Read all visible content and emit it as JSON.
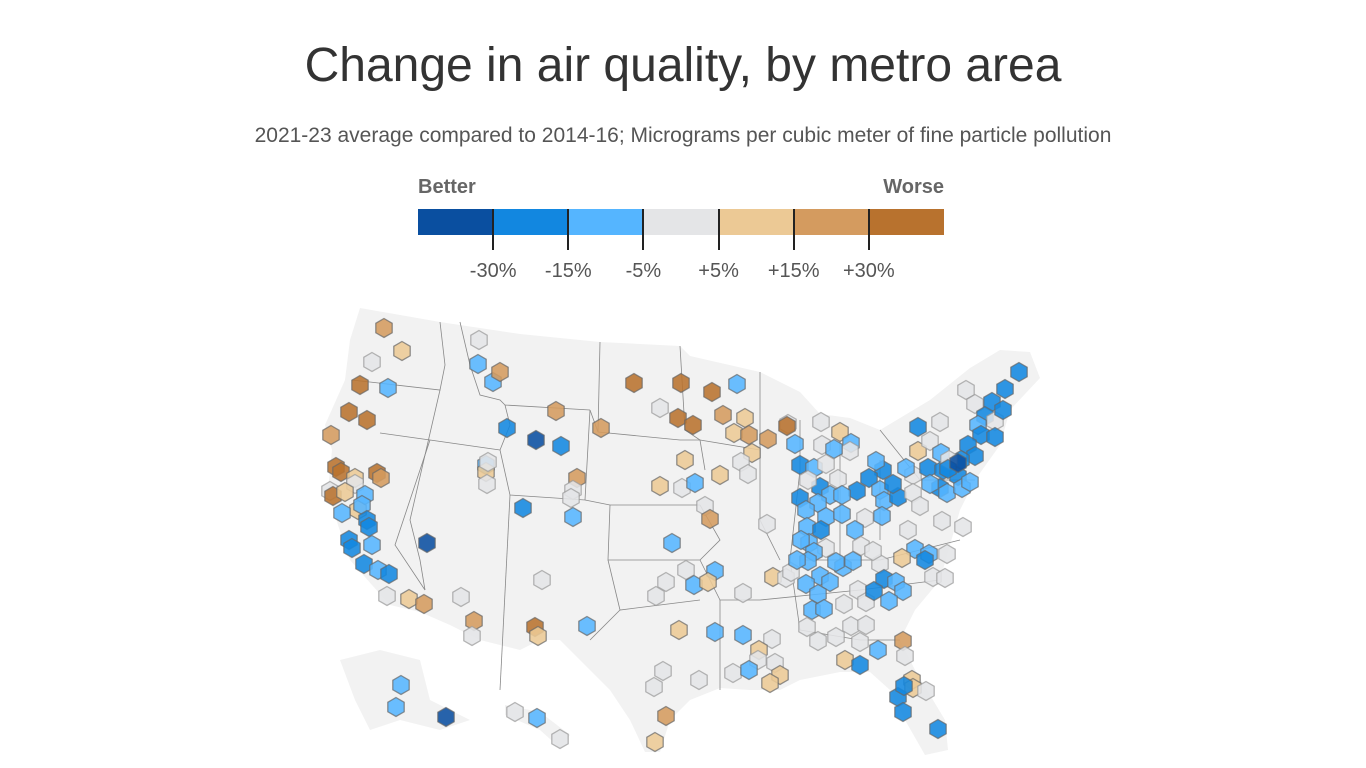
{
  "title": "Change in air quality, by metro area",
  "subtitle": "2021-23 average compared to 2014-16; Micrograms per cubic meter of fine particle pollution",
  "legend": {
    "better_label": "Better",
    "worse_label": "Worse",
    "colors": [
      "#0a4fa0",
      "#1287e0",
      "#55b5ff",
      "#e4e5e7",
      "#ecc995",
      "#d49b5f",
      "#b8722e"
    ],
    "ticks": [
      "-30%",
      "-15%",
      "-5%",
      "+5%",
      "+15%",
      "+30%"
    ]
  },
  "map": {
    "land_color": "#f2f2f2",
    "border_color": "#888888",
    "metro_bins": [
      5,
      4,
      3,
      6,
      2,
      6,
      6,
      5,
      6,
      6,
      4,
      6,
      5,
      3,
      6,
      3,
      4,
      4,
      2,
      2,
      2,
      1,
      1,
      2,
      1,
      1,
      1,
      2,
      1,
      3,
      4,
      5,
      0,
      3,
      5,
      3,
      3,
      2,
      2,
      5,
      1,
      0,
      1,
      2,
      4,
      3,
      3,
      5,
      5,
      5,
      3,
      3,
      2,
      1,
      3,
      6,
      4,
      2,
      6,
      6,
      6,
      2,
      3,
      6,
      6,
      5,
      4,
      4,
      5,
      5,
      4,
      3,
      3,
      4,
      4,
      4,
      3,
      2,
      3,
      5,
      2,
      3,
      3,
      2,
      6,
      3,
      4,
      3,
      2,
      3,
      2,
      1,
      2,
      3,
      3,
      1,
      1,
      3,
      1,
      2,
      2,
      2,
      2,
      2,
      2,
      1,
      2,
      3,
      2,
      3,
      2,
      3,
      2,
      2,
      2,
      2,
      2,
      2,
      2,
      2,
      2,
      2,
      2,
      3,
      3,
      3,
      3,
      3,
      3,
      3,
      3,
      3,
      4,
      1,
      2,
      3,
      3,
      1,
      1,
      2,
      2,
      2,
      1,
      2,
      1,
      2,
      2,
      1,
      2,
      1,
      3,
      4,
      3,
      3,
      1,
      2,
      2,
      1,
      1,
      1,
      1,
      2,
      2,
      2,
      3,
      3,
      3,
      3,
      3,
      2,
      2,
      3,
      3,
      3,
      4,
      1,
      3,
      2,
      3,
      2,
      4,
      3,
      3,
      4,
      3,
      3,
      4,
      2,
      2,
      3,
      4,
      3,
      3,
      4,
      4,
      3,
      2,
      3,
      3,
      3,
      5,
      4,
      5,
      3,
      4,
      4,
      3,
      1,
      1,
      1,
      1,
      3,
      1,
      1,
      3,
      1,
      1,
      3,
      2,
      1,
      1,
      1,
      1,
      1,
      1,
      3,
      1,
      2,
      0,
      2,
      2,
      0,
      3,
      2,
      3,
      2,
      2
    ]
  }
}
